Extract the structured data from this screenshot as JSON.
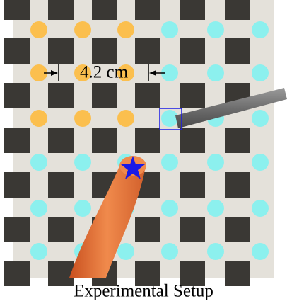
{
  "annotation": "4.2 cm",
  "caption": "Experimental Setup"
}
